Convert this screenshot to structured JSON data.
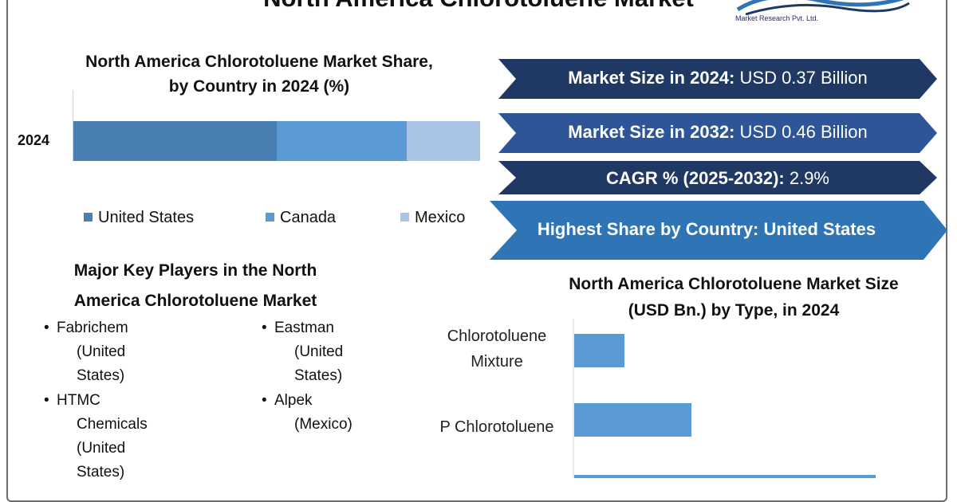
{
  "header": {
    "title": "North America Chlorotoluene Market",
    "logo_sub": "Market Research Pvt. Ltd."
  },
  "colors": {
    "united_states": "#4a7fb4",
    "canada": "#5b9bd5",
    "mexico": "#aac4e6",
    "stat_navy": "#1f3864",
    "stat_blue": "#2e5597",
    "stat_light": "#2f75b5",
    "type_bar": "#5b9bd5"
  },
  "chart_data": [
    {
      "type": "bar",
      "orientation": "horizontal-stacked",
      "title_line1": "North America Chlorotoluene Market Share,",
      "title_line2": "by Country in 2024 (%)",
      "categories": [
        "2024"
      ],
      "series": [
        {
          "name": "United States",
          "values": [
            50
          ]
        },
        {
          "name": "Canada",
          "values": [
            32
          ]
        },
        {
          "name": "Mexico",
          "values": [
            18
          ]
        }
      ],
      "legend": "bottom"
    },
    {
      "type": "bar",
      "orientation": "horizontal",
      "title_line1": "North America Chlorotoluene Market Size",
      "title_line2": "(USD Bn.) by Type, in 2024",
      "categories": [
        {
          "line1": "Chlorotoluene",
          "line2": "Mixture"
        },
        {
          "line1": "P Chlorotoluene",
          "line2": ""
        },
        {
          "line1": "",
          "line2": ""
        }
      ],
      "values": [
        0.03,
        0.07,
        0.18
      ],
      "xlim": [
        0,
        0.2
      ]
    }
  ],
  "stats": [
    {
      "label": "Market Size in 2024:",
      "value": " USD 0.37 Billion"
    },
    {
      "label": "Market Size in 2032:",
      "value": " USD 0.46 Billion"
    },
    {
      "label": "CAGR % (2025-2032):",
      "value": " 2.9%"
    },
    {
      "label": "Highest Share by Country: United States",
      "value": ""
    }
  ],
  "players": {
    "title_line1": "Major Key Players in the North",
    "title_line2": "America Chlorotoluene Market",
    "items": [
      {
        "name": "Fabrichem",
        "country_line1": "(United",
        "country_line2": "States)"
      },
      {
        "name": "Eastman",
        "country_line1": "(United",
        "country_line2": "States)"
      },
      {
        "name": "HTMC",
        "country_line1": "Chemicals",
        "country_line2": "(United",
        "country_line3": "States)"
      },
      {
        "name": "Alpek",
        "country_line1": "(Mexico)",
        "country_line2": ""
      }
    ]
  }
}
